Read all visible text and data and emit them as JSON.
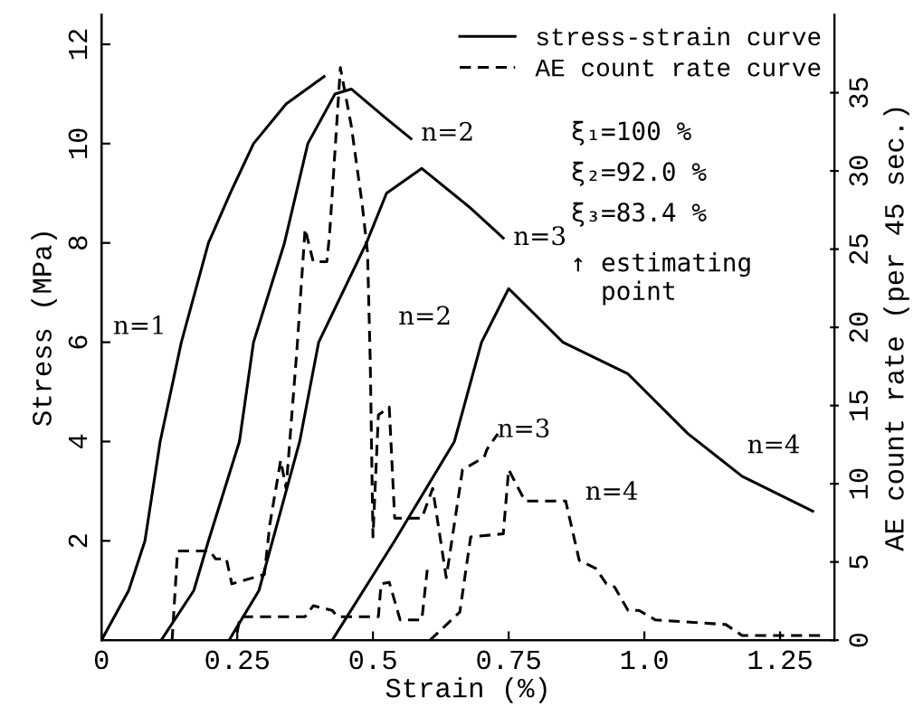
{
  "chart_data": {
    "type": "line",
    "xlabel": "Strain (%)",
    "ylabel": "Stress (MPa)",
    "y2label": "AE count rate (per 45 sec.)",
    "xlim": [
      0,
      1.35
    ],
    "xticks": [
      0,
      0.25,
      0.5,
      0.75,
      {
        "value": 1.0,
        "label": "1.0"
      },
      1.25
    ],
    "ylim": [
      0,
      12.6
    ],
    "yticks": [
      2,
      4,
      6,
      8,
      10,
      12
    ],
    "y2lim": [
      0,
      40
    ],
    "y2ticks": [
      0,
      5,
      10,
      15,
      20,
      25,
      30,
      35
    ],
    "grid": false,
    "legend": "top right",
    "marker": "none",
    "series": [
      {
        "name": "stress-strain curve",
        "color": "#000000",
        "line_style": "solid",
        "x": [
          0,
          0.05,
          0.08,
          0.108,
          0.147,
          0.197,
          0.237,
          0.28,
          0.34,
          0.41
        ],
        "values": [
          0,
          1,
          2,
          4,
          6,
          8,
          9,
          10,
          10.8,
          11.35
        ]
      },
      {
        "color": "#000000",
        "line_style": "solid",
        "x": [
          0.11,
          0.17,
          0.197,
          0.254,
          0.28,
          0.337,
          0.38,
          0.43,
          0.46,
          0.525,
          0.57
        ],
        "values": [
          0,
          1,
          2,
          4,
          6,
          8,
          10,
          11,
          11.1,
          10.5,
          10.1
        ]
      },
      {
        "color": "#000000",
        "line_style": "solid",
        "x": [
          0.235,
          0.29,
          0.34,
          0.365,
          0.4,
          0.488,
          0.525,
          0.59,
          0.68,
          0.74
        ],
        "values": [
          0,
          1,
          3,
          4,
          6,
          8,
          9,
          9.5,
          8.7,
          8.1
        ]
      },
      {
        "color": "#000000",
        "line_style": "solid",
        "x": [
          0.425,
          0.54,
          0.65,
          0.7,
          0.75,
          0.85,
          0.97,
          1.08,
          1.18,
          1.31
        ],
        "values": [
          0,
          2,
          4,
          6,
          7.08,
          6.0,
          5.36,
          4.16,
          3.3,
          2.6
        ]
      },
      {
        "name": "AE count rate curve",
        "color": "#000000",
        "line_style": "dashed",
        "axis": "y2",
        "x": [
          0.13,
          0.14,
          0.2,
          0.21,
          0.23,
          0.24,
          0.3,
          0.31,
          0.33,
          0.34,
          0.36,
          0.375,
          0.39,
          0.415,
          0.42,
          0.44,
          0.46,
          0.48,
          0.49,
          0.495,
          0.5,
          0.51,
          0.53,
          0.54,
          0.59,
          0.61,
          0.635,
          0.665,
          0.705,
          0.71,
          0.73
        ],
        "values": [
          0,
          5.7,
          5.7,
          5.2,
          5.2,
          3.6,
          4.2,
          7.4,
          11.5,
          9.7,
          18.6,
          26.3,
          24.2,
          24.2,
          25.9,
          36.6,
          32.9,
          27.9,
          24.8,
          17.8,
          6.6,
          14.4,
          14.9,
          7.8,
          7.8,
          9.7,
          4.0,
          10.9,
          11.7,
          12.2,
          13.2
        ]
      },
      {
        "color": "#000000",
        "line_style": "dashed",
        "axis": "y2",
        "x": [
          0.25,
          0.255,
          0.375,
          0.39,
          0.425,
          0.435,
          0.51,
          0.515,
          0.53,
          0.55,
          0.59,
          0.6
        ],
        "values": [
          0.5,
          1.5,
          1.5,
          2.2,
          1.9,
          1.5,
          1.5,
          3.6,
          3.7,
          1.3,
          1.3,
          4.5
        ]
      },
      {
        "color": "#000000",
        "line_style": "dashed",
        "axis": "y2",
        "x": [
          0.605,
          0.66,
          0.68,
          0.74,
          0.75,
          0.78,
          0.855,
          0.88,
          0.91,
          0.93,
          0.945,
          0.97,
          0.99,
          1.02,
          1.15,
          1.18,
          1.33
        ],
        "values": [
          0,
          1.8,
          6.6,
          6.8,
          10.9,
          8.9,
          8.9,
          5.1,
          4.6,
          3.6,
          3.4,
          1.9,
          1.9,
          1.3,
          1.0,
          0.3,
          0.3
        ]
      }
    ],
    "annotations": [
      {
        "text": "n=1",
        "x": 0.147,
        "y": 6
      },
      {
        "text": "n=2",
        "x": 0.57,
        "y": 10.1
      },
      {
        "text": "n=3",
        "x": 0.74,
        "y": 8.1
      },
      {
        "text": "n=4",
        "x": 1.18,
        "y": 3.3
      },
      "n=2",
      "n=3",
      "n=4",
      "ξ₁=100 %",
      "ξ₂=92.0 %",
      "ξ₃=83.4 %",
      "↑ estimating\n  point"
    ]
  }
}
